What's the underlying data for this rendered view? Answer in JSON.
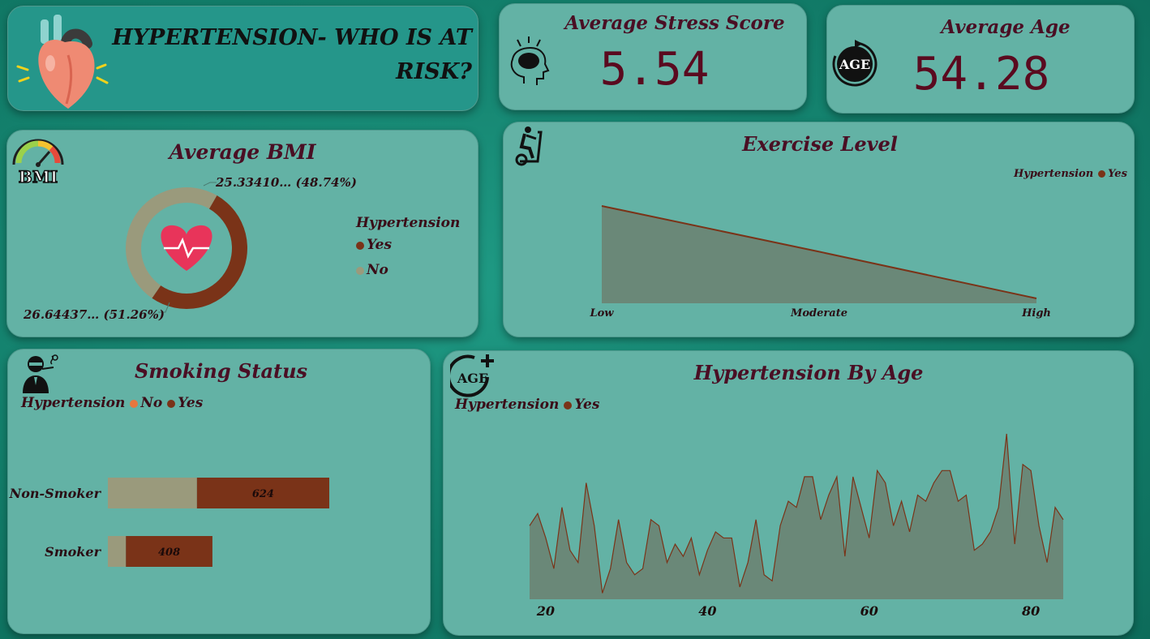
{
  "header": {
    "title": "HYPERTENSION- WHO IS AT RISK?"
  },
  "kpis": {
    "stress": {
      "label": "Average Stress Score",
      "value": "5.54"
    },
    "age": {
      "label": "Average Age",
      "value": "54.28"
    }
  },
  "icons": {
    "heart": "heart-illustration",
    "stress": "brain-stress-icon",
    "age": "age-refresh-icon",
    "bmi": "bmi-gauge-icon",
    "exercise": "exercise-bike-icon",
    "smoking": "smoker-icon",
    "age_plus": "age-plus-icon"
  },
  "colors": {
    "yes": "#7a3318",
    "no_donut": "#9a9a7c",
    "no_smoking": "#e8773e",
    "area_fill": "#6a8878",
    "area_line": "#7a3318"
  },
  "chart_data": [
    {
      "id": "bmi",
      "type": "pie",
      "title": "Average BMI",
      "legend_title": "Hypertension",
      "legend_position": "right",
      "slices": [
        {
          "name": "Yes",
          "value": 26.64437,
          "label": "26.64437… (51.26%)"
        },
        {
          "name": "No",
          "value": 25.3341,
          "label": "25.33410… (48.74%)"
        }
      ]
    },
    {
      "id": "exercise",
      "type": "area",
      "title": "Exercise Level",
      "legend_title": "Hypertension",
      "legend_position": "top-right",
      "categories": [
        "Low",
        "Moderate",
        "High"
      ],
      "series": [
        {
          "name": "Yes",
          "values": [
            100,
            53,
            5
          ]
        }
      ]
    },
    {
      "id": "smoking",
      "type": "bar",
      "orientation": "horizontal",
      "stacked": true,
      "title": "Smoking Status",
      "legend_title": "Hypertension",
      "legend_position": "top-left",
      "categories": [
        "Non-Smoker",
        "Smoker"
      ],
      "series": [
        {
          "name": "No",
          "values": [
            420,
            85
          ]
        },
        {
          "name": "Yes",
          "values": [
            624,
            408
          ]
        }
      ]
    },
    {
      "id": "age",
      "type": "area",
      "title": "Hypertension By Age",
      "legend_title": "Hypertension",
      "legend_position": "top-left",
      "xlim": [
        18,
        84
      ],
      "xticks": [
        20,
        40,
        60,
        80
      ],
      "x": [
        18,
        19,
        20,
        21,
        22,
        23,
        24,
        25,
        26,
        27,
        28,
        29,
        30,
        31,
        32,
        33,
        34,
        35,
        36,
        37,
        38,
        39,
        40,
        41,
        42,
        43,
        44,
        45,
        46,
        47,
        48,
        49,
        50,
        51,
        52,
        53,
        54,
        55,
        56,
        57,
        58,
        59,
        60,
        61,
        62,
        63,
        64,
        65,
        66,
        67,
        68,
        69,
        70,
        71,
        72,
        73,
        74,
        75,
        76,
        77,
        78,
        79,
        80,
        81,
        82,
        83,
        84
      ],
      "series": [
        {
          "name": "Yes",
          "values": [
            12,
            14,
            10,
            5,
            15,
            8,
            6,
            19,
            12,
            1,
            5,
            13,
            6,
            4,
            5,
            13,
            12,
            6,
            9,
            7,
            10,
            4,
            8,
            11,
            10,
            10,
            2,
            6,
            13,
            4,
            3,
            12,
            16,
            15,
            20,
            20,
            13,
            17,
            20,
            7,
            20,
            15,
            10,
            21,
            19,
            12,
            16,
            11,
            17,
            16,
            19,
            21,
            21,
            16,
            17,
            8,
            9,
            11,
            15,
            27,
            9,
            22,
            21,
            12,
            6,
            15,
            13
          ]
        }
      ]
    }
  ]
}
